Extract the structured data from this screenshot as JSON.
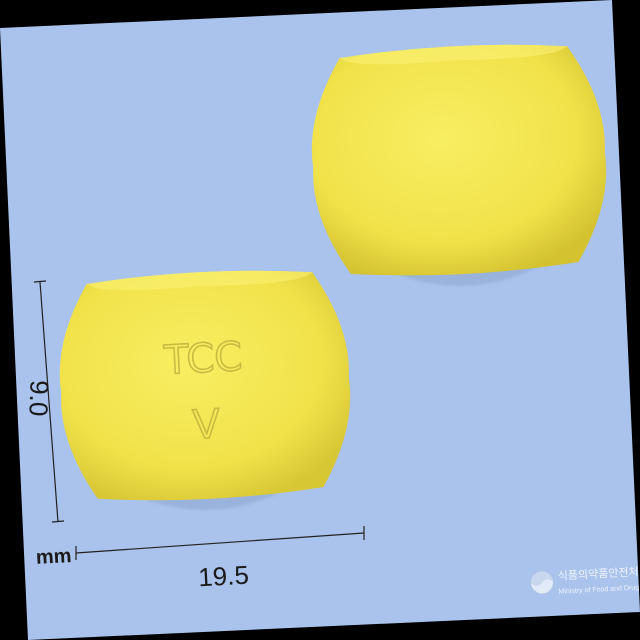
{
  "photo": {
    "background_color": "#a9c3ec",
    "frame_color": "#000000",
    "pill_color": "#f5e84e",
    "pill_shadow_color": "#d9c833",
    "imprint_color": "#cfc04a"
  },
  "pills": {
    "front_imprint": [
      "TCC",
      "V"
    ],
    "back_imprint": []
  },
  "measurements": {
    "height_value": "9.0",
    "width_value": "19.5",
    "unit": "mm"
  },
  "watermark": {
    "agency_ko": "식품의약품안전처",
    "agency_en": "Ministry of Food and Drug Safety",
    "logo": "mfds-seal-icon"
  }
}
